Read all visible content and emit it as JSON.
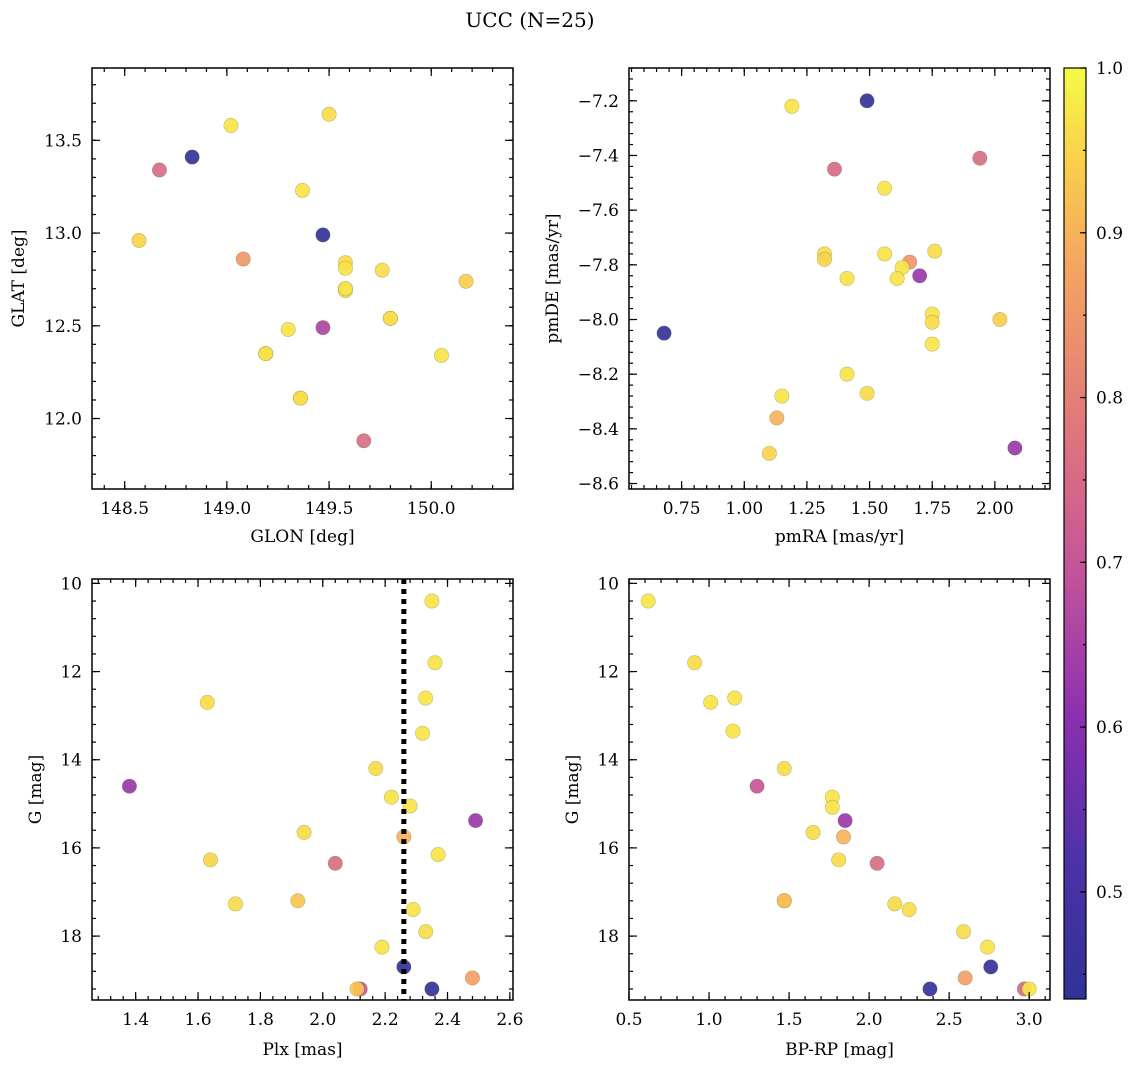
{
  "figure": {
    "title": "UCC (N=25)"
  },
  "colorbar": {
    "range": [
      0.435,
      1.0
    ],
    "ticks": [
      "0.5",
      "0.6",
      "0.7",
      "0.8",
      "0.9",
      "1.0"
    ],
    "tick_values": [
      0.5,
      0.6,
      0.7,
      0.8,
      0.9,
      1.0
    ],
    "colormap": "plasma"
  },
  "chart_data": [
    {
      "type": "scatter",
      "xlabel": "GLON [deg]",
      "ylabel": "GLAT [deg]",
      "xlim": [
        148.34,
        150.4
      ],
      "ylim": [
        11.62,
        13.89
      ],
      "xticks": [
        148.5,
        149.0,
        149.5,
        150.0
      ],
      "xtick_labels": [
        "148.5",
        "149.0",
        "149.5",
        "150.0"
      ],
      "yticks": [
        12.0,
        12.5,
        13.0,
        13.5
      ],
      "ytick_labels": [
        "12.0",
        "12.5",
        "13.0",
        "13.5"
      ],
      "x": [
        148.57,
        148.67,
        148.83,
        149.02,
        149.5,
        149.37,
        149.47,
        149.08,
        149.58,
        149.58,
        149.76,
        150.17,
        149.58,
        149.58,
        149.8,
        149.8,
        149.3,
        149.19,
        149.47,
        150.05,
        149.36,
        149.67,
        149.19,
        149.36,
        149.58
      ],
      "y": [
        12.96,
        13.34,
        13.41,
        13.58,
        13.64,
        13.23,
        12.99,
        12.86,
        12.84,
        12.81,
        12.8,
        12.74,
        12.7,
        12.69,
        12.54,
        12.54,
        12.48,
        12.35,
        12.49,
        12.34,
        12.11,
        11.88,
        12.35,
        12.11,
        12.7
      ],
      "prob": [
        0.95,
        0.76,
        0.45,
        0.97,
        0.96,
        0.97,
        0.45,
        0.85,
        0.96,
        0.97,
        0.96,
        0.94,
        0.97,
        0.96,
        0.97,
        0.96,
        0.97,
        0.9,
        0.66,
        0.97,
        0.97,
        0.76,
        0.97,
        0.96,
        0.97
      ]
    },
    {
      "type": "scatter",
      "xlabel": "pmRA [mas/yr]",
      "ylabel": "pmDE [mas/yr]",
      "xlim": [
        0.54,
        2.22
      ],
      "ylim": [
        -8.62,
        -7.08
      ],
      "xticks": [
        0.75,
        1.0,
        1.25,
        1.5,
        1.75,
        2.0
      ],
      "xtick_labels": [
        "0.75",
        "1.00",
        "1.25",
        "1.50",
        "1.75",
        "2.00"
      ],
      "yticks": [
        -8.6,
        -8.4,
        -8.2,
        -8.0,
        -7.8,
        -7.6,
        -7.4,
        -7.2
      ],
      "ytick_labels": [
        "−8.6",
        "−8.4",
        "−8.2",
        "−8.0",
        "−7.8",
        "−7.6",
        "−7.4",
        "−7.2"
      ],
      "x": [
        1.19,
        1.49,
        1.36,
        1.94,
        1.56,
        1.32,
        1.32,
        1.56,
        1.76,
        1.66,
        1.63,
        1.61,
        1.41,
        1.7,
        1.75,
        1.75,
        1.75,
        1.41,
        1.49,
        1.15,
        1.13,
        1.1,
        0.68,
        2.02,
        2.08
      ],
      "y": [
        -7.22,
        -7.2,
        -7.45,
        -7.41,
        -7.52,
        -7.76,
        -7.78,
        -7.76,
        -7.75,
        -7.79,
        -7.81,
        -7.85,
        -7.85,
        -7.84,
        -7.98,
        -8.01,
        -8.09,
        -8.2,
        -8.27,
        -8.28,
        -8.36,
        -8.49,
        -8.05,
        -8.0,
        -8.47
      ],
      "prob": [
        0.97,
        0.45,
        0.75,
        0.76,
        0.97,
        0.96,
        0.95,
        0.97,
        0.96,
        0.85,
        0.97,
        0.97,
        0.97,
        0.63,
        0.97,
        0.96,
        0.97,
        0.97,
        0.96,
        0.97,
        0.9,
        0.95,
        0.45,
        0.94,
        0.63
      ]
    },
    {
      "type": "scatter",
      "xlabel": "Plx [mas]",
      "ylabel": "G [mag]",
      "xlim": [
        1.26,
        2.61
      ],
      "ylim": [
        19.45,
        9.9
      ],
      "y_inverted": true,
      "xticks": [
        1.4,
        1.6,
        1.8,
        2.0,
        2.2,
        2.4,
        2.6
      ],
      "xtick_labels": [
        "1.4",
        "1.6",
        "1.8",
        "2.0",
        "2.2",
        "2.4",
        "2.6"
      ],
      "yticks": [
        10,
        12,
        14,
        16,
        18
      ],
      "ytick_labels": [
        "10",
        "12",
        "14",
        "16",
        "18"
      ],
      "vline": {
        "x": 2.26,
        "style": "dotted"
      },
      "x": [
        2.35,
        2.36,
        1.63,
        2.33,
        2.32,
        1.38,
        2.17,
        2.22,
        2.28,
        2.49,
        1.94,
        2.26,
        2.37,
        1.64,
        2.04,
        1.72,
        1.92,
        2.29,
        2.33,
        2.19,
        2.26,
        2.48,
        2.12,
        2.11,
        2.35
      ],
      "y": [
        10.4,
        11.8,
        12.7,
        12.6,
        13.4,
        14.6,
        14.2,
        14.85,
        15.05,
        15.38,
        15.65,
        15.75,
        16.15,
        16.27,
        16.35,
        17.27,
        17.2,
        17.4,
        17.9,
        18.25,
        18.7,
        18.95,
        19.2,
        19.2,
        19.2
      ],
      "prob": [
        0.97,
        0.97,
        0.96,
        0.97,
        0.97,
        0.63,
        0.96,
        0.97,
        0.97,
        0.63,
        0.96,
        0.9,
        0.97,
        0.95,
        0.76,
        0.96,
        0.93,
        0.97,
        0.96,
        0.97,
        0.45,
        0.87,
        0.7,
        0.93,
        0.45
      ]
    },
    {
      "type": "scatter",
      "xlabel": "BP-RP [mag]",
      "ylabel": "G [mag]",
      "xlim": [
        0.5,
        3.13
      ],
      "ylim": [
        19.45,
        9.9
      ],
      "y_inverted": true,
      "xticks": [
        0.5,
        1.0,
        1.5,
        2.0,
        2.5,
        3.0
      ],
      "xtick_labels": [
        "0.5",
        "1.0",
        "1.5",
        "2.0",
        "2.5",
        "3.0"
      ],
      "yticks": [
        10,
        12,
        14,
        16,
        18
      ],
      "ytick_labels": [
        "10",
        "12",
        "14",
        "16",
        "18"
      ],
      "x": [
        0.62,
        0.91,
        1.01,
        1.16,
        1.15,
        1.3,
        1.47,
        1.77,
        1.77,
        1.85,
        1.65,
        1.84,
        1.81,
        2.05,
        1.47,
        2.16,
        2.25,
        2.59,
        2.74,
        2.76,
        2.6,
        2.38,
        2.97,
        3.0,
        1.47
      ],
      "y": [
        10.4,
        11.8,
        12.7,
        12.6,
        13.35,
        14.6,
        14.2,
        14.85,
        15.08,
        15.38,
        15.65,
        15.75,
        16.27,
        16.35,
        17.2,
        17.27,
        17.4,
        17.9,
        18.25,
        18.7,
        18.95,
        19.2,
        19.2,
        19.2,
        17.2
      ],
      "prob": [
        0.97,
        0.96,
        0.97,
        0.97,
        0.97,
        0.7,
        0.96,
        0.97,
        0.97,
        0.63,
        0.96,
        0.9,
        0.96,
        0.76,
        0.92,
        0.96,
        0.96,
        0.96,
        0.97,
        0.45,
        0.87,
        0.45,
        0.75,
        0.97,
        0.92
      ]
    }
  ]
}
